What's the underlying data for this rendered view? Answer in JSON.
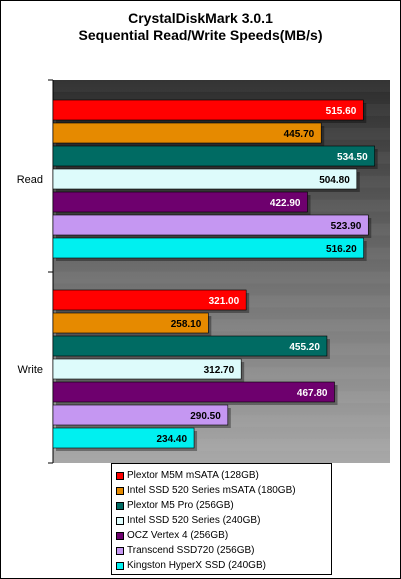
{
  "chart_data": {
    "type": "bar",
    "orientation": "horizontal",
    "title": [
      "CrystalDiskMark 3.0.1",
      "Sequential Read/Write Speeds(MB/s)"
    ],
    "categories": [
      "Read",
      "Write"
    ],
    "xlim": [
      0,
      560
    ],
    "grid": false,
    "legend_position": "bottom",
    "series": [
      {
        "name": "Plextor M5M  mSATA (128GB)",
        "color": "#ff0000",
        "values": [
          515.6,
          321.0
        ]
      },
      {
        "name": "Intel SSD 520 Series mSATA (180GB)",
        "color": "#e68a00",
        "values": [
          445.7,
          258.1
        ]
      },
      {
        "name": "Plextor M5 Pro (256GB)",
        "color": "#006b63",
        "values": [
          534.5,
          455.2
        ]
      },
      {
        "name": "Intel SSD 520 Series (240GB)",
        "color": "#ddfbfb",
        "values": [
          504.8,
          312.7
        ]
      },
      {
        "name": "OCZ Vertex 4 (256GB)",
        "color": "#6e006e",
        "values": [
          422.9,
          467.8
        ]
      },
      {
        "name": "Transcend SSD720 (256GB)",
        "color": "#c597f2",
        "values": [
          523.9,
          290.5
        ]
      },
      {
        "name": "Kingston HyperX SSD (240GB)",
        "color": "#00f0f0",
        "values": [
          516.2,
          234.4
        ]
      }
    ]
  }
}
